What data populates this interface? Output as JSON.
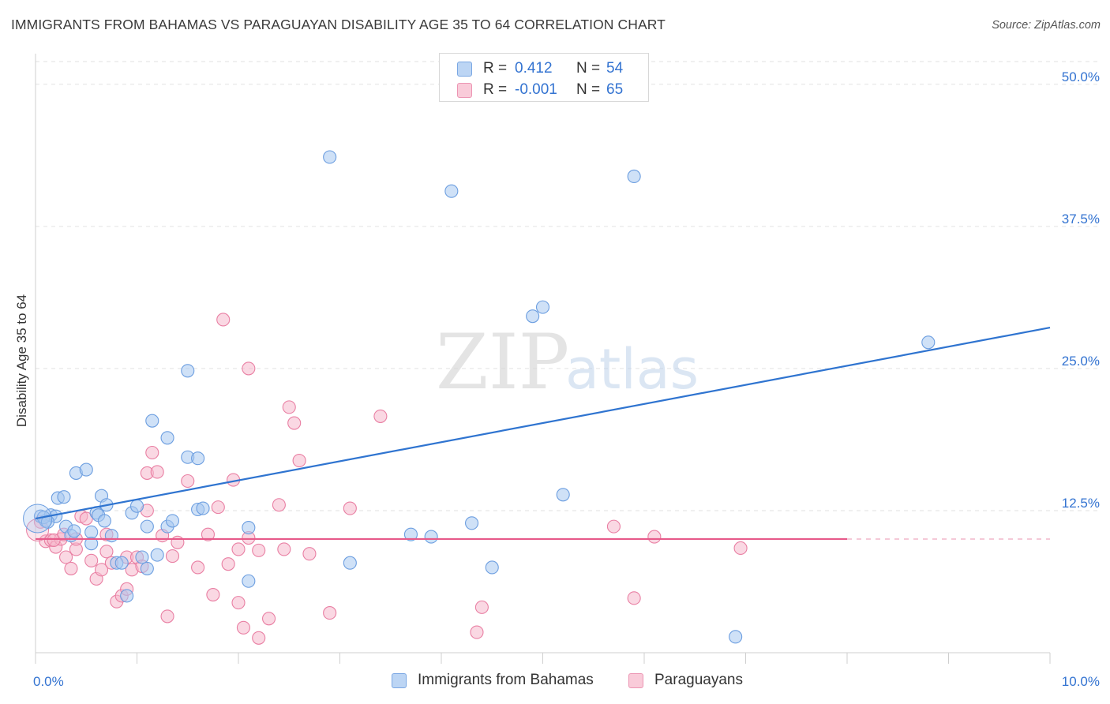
{
  "title": "IMMIGRANTS FROM BAHAMAS VS PARAGUAYAN DISABILITY AGE 35 TO 64 CORRELATION CHART",
  "source": "Source: ZipAtlas.com",
  "watermark": {
    "zip": "ZIP",
    "atlas": "atlas"
  },
  "legend": {
    "rows": [
      {
        "r_label": "R =",
        "r_value": "0.412",
        "n_label": "N =",
        "n_value": "54"
      },
      {
        "r_label": "R =",
        "r_value": "-0.001",
        "n_label": "N =",
        "n_value": "65"
      }
    ]
  },
  "bottom_legend": [
    "Immigrants from Bahamas",
    "Paraguayans"
  ],
  "colors": {
    "blue_fill": "#a8c8f0",
    "blue_stroke": "#6c9ee0",
    "blue_line": "#2f74d0",
    "pink_fill": "#f6b8cc",
    "pink_stroke": "#e97fa3",
    "pink_line": "#e75a8a",
    "tick_label": "#3373d1",
    "grid": "#e2e2e2"
  },
  "chart_data": {
    "type": "scatter",
    "title": "IMMIGRANTS FROM BAHAMAS VS PARAGUAYAN DISABILITY AGE 35 TO 64 CORRELATION CHART",
    "xlabel": "",
    "ylabel": "Disability Age 35 to 64",
    "xlim": [
      0,
      10
    ],
    "ylim": [
      0,
      52
    ],
    "x_tick_labels": [
      "0.0%",
      "10.0%"
    ],
    "y_ticks": [
      12.5,
      25,
      37.5,
      50
    ],
    "y_tick_labels": [
      "12.5%",
      "25.0%",
      "37.5%",
      "50.0%"
    ],
    "series": [
      {
        "name": "Immigrants from Bahamas",
        "R": 0.412,
        "N": 54,
        "trend": {
          "x": [
            0,
            10
          ],
          "y": [
            11.8,
            28.6
          ]
        },
        "points": [
          [
            0.05,
            12.0
          ],
          [
            0.1,
            11.6
          ],
          [
            0.15,
            12.1
          ],
          [
            0.2,
            12.0
          ],
          [
            0.22,
            13.6
          ],
          [
            0.28,
            13.7
          ],
          [
            0.3,
            11.1
          ],
          [
            0.35,
            10.3
          ],
          [
            0.38,
            10.7
          ],
          [
            0.4,
            15.8
          ],
          [
            0.5,
            16.1
          ],
          [
            0.55,
            10.6
          ],
          [
            0.55,
            9.6
          ],
          [
            0.6,
            12.3
          ],
          [
            0.62,
            12.1
          ],
          [
            0.65,
            13.8
          ],
          [
            0.68,
            11.6
          ],
          [
            0.7,
            13.0
          ],
          [
            0.75,
            10.3
          ],
          [
            0.8,
            7.9
          ],
          [
            0.85,
            7.9
          ],
          [
            0.9,
            5.0
          ],
          [
            0.95,
            12.3
          ],
          [
            1.0,
            12.9
          ],
          [
            1.05,
            8.4
          ],
          [
            1.1,
            11.1
          ],
          [
            1.1,
            7.4
          ],
          [
            1.15,
            20.4
          ],
          [
            1.2,
            8.6
          ],
          [
            1.3,
            11.1
          ],
          [
            1.3,
            18.9
          ],
          [
            1.35,
            11.6
          ],
          [
            1.5,
            24.8
          ],
          [
            1.5,
            17.2
          ],
          [
            1.6,
            17.1
          ],
          [
            1.6,
            12.6
          ],
          [
            2.1,
            11.0
          ],
          [
            2.1,
            6.3
          ],
          [
            2.9,
            43.6
          ],
          [
            3.1,
            7.9
          ],
          [
            3.7,
            10.4
          ],
          [
            3.9,
            10.2
          ],
          [
            4.1,
            40.6
          ],
          [
            4.3,
            11.4
          ],
          [
            4.5,
            7.5
          ],
          [
            4.9,
            29.6
          ],
          [
            5.0,
            30.4
          ],
          [
            5.2,
            13.9
          ],
          [
            5.9,
            41.9
          ],
          [
            6.9,
            1.4
          ],
          [
            8.8,
            27.3
          ],
          [
            0.08,
            11.9
          ],
          [
            0.12,
            11.5
          ],
          [
            1.65,
            12.7
          ]
        ]
      },
      {
        "name": "Paraguayans",
        "R": -0.001,
        "N": 65,
        "trend": {
          "x": [
            0,
            8
          ],
          "y": [
            10.0,
            10.0
          ]
        },
        "trend_dashed": {
          "x": [
            8,
            10
          ],
          "y": [
            10.0,
            10.0
          ]
        },
        "points": [
          [
            0.05,
            11.5
          ],
          [
            0.1,
            9.8
          ],
          [
            0.15,
            9.9
          ],
          [
            0.2,
            9.3
          ],
          [
            0.25,
            10.0
          ],
          [
            0.3,
            8.4
          ],
          [
            0.35,
            7.4
          ],
          [
            0.4,
            9.1
          ],
          [
            0.4,
            10.0
          ],
          [
            0.45,
            12.0
          ],
          [
            0.5,
            11.8
          ],
          [
            0.55,
            8.1
          ],
          [
            0.6,
            6.5
          ],
          [
            0.65,
            7.3
          ],
          [
            0.7,
            10.4
          ],
          [
            0.7,
            8.9
          ],
          [
            0.75,
            7.9
          ],
          [
            0.8,
            4.5
          ],
          [
            0.85,
            5.0
          ],
          [
            0.9,
            5.6
          ],
          [
            0.9,
            8.4
          ],
          [
            0.95,
            7.3
          ],
          [
            1.0,
            8.4
          ],
          [
            1.05,
            7.6
          ],
          [
            1.1,
            12.5
          ],
          [
            1.1,
            15.8
          ],
          [
            1.15,
            17.6
          ],
          [
            1.2,
            15.9
          ],
          [
            1.25,
            10.3
          ],
          [
            1.3,
            3.2
          ],
          [
            1.35,
            8.5
          ],
          [
            1.4,
            9.7
          ],
          [
            1.5,
            15.1
          ],
          [
            1.6,
            7.5
          ],
          [
            1.7,
            10.4
          ],
          [
            1.75,
            5.1
          ],
          [
            1.8,
            12.8
          ],
          [
            1.85,
            29.3
          ],
          [
            1.9,
            7.8
          ],
          [
            1.95,
            15.2
          ],
          [
            2.0,
            9.1
          ],
          [
            2.0,
            4.4
          ],
          [
            2.05,
            2.2
          ],
          [
            2.1,
            25.0
          ],
          [
            2.1,
            10.1
          ],
          [
            2.2,
            9.0
          ],
          [
            2.3,
            3.0
          ],
          [
            2.4,
            13.0
          ],
          [
            2.45,
            9.1
          ],
          [
            2.5,
            21.6
          ],
          [
            2.55,
            20.2
          ],
          [
            2.6,
            16.9
          ],
          [
            2.7,
            8.7
          ],
          [
            2.9,
            3.5
          ],
          [
            3.1,
            12.7
          ],
          [
            3.4,
            20.8
          ],
          [
            4.35,
            1.8
          ],
          [
            4.4,
            4.0
          ],
          [
            5.7,
            11.1
          ],
          [
            5.9,
            4.8
          ],
          [
            6.1,
            10.2
          ],
          [
            6.95,
            9.2
          ],
          [
            0.18,
            9.9
          ],
          [
            0.28,
            10.4
          ],
          [
            2.2,
            1.3
          ]
        ]
      }
    ]
  }
}
